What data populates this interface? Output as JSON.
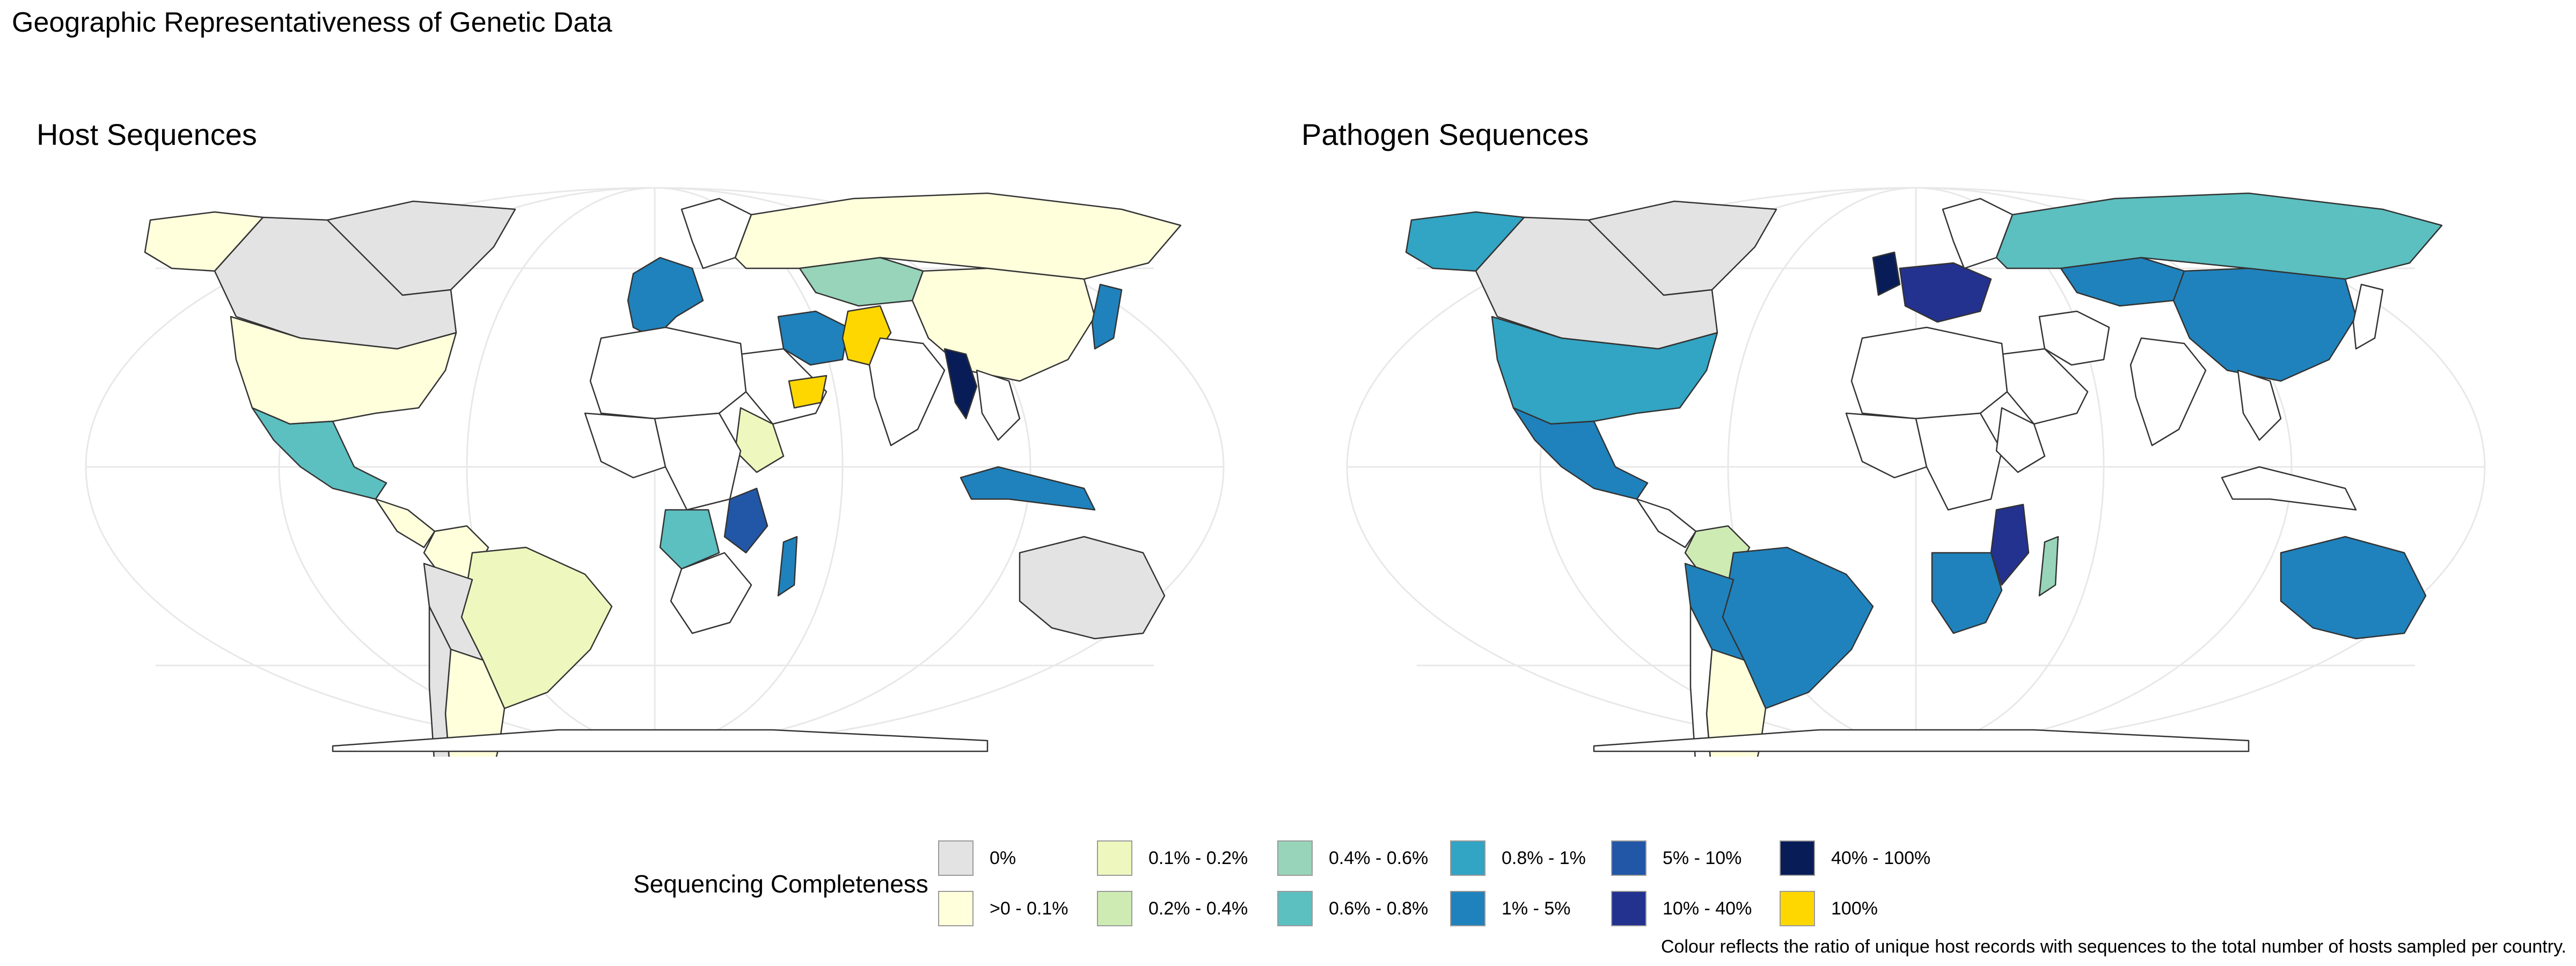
{
  "title": "Geographic Representativeness of Genetic Data",
  "panels": {
    "host": {
      "title": "Host Sequences"
    },
    "pathogen": {
      "title": "Pathogen Sequences"
    }
  },
  "legend": {
    "title": "Sequencing Completeness",
    "items": [
      {
        "label": "0%",
        "color": "#e3e3e3"
      },
      {
        "label": ">0 - 0.1%",
        "color": "#ffffdc"
      },
      {
        "label": "0.1% - 0.2%",
        "color": "#eef7bd"
      },
      {
        "label": "0.2% - 0.4%",
        "color": "#cfebb4"
      },
      {
        "label": "0.4% - 0.6%",
        "color": "#97d4b9"
      },
      {
        "label": "0.6% - 0.8%",
        "color": "#5cbfc0"
      },
      {
        "label": "0.8% - 1%",
        "color": "#32a4c4"
      },
      {
        "label": "1% - 5%",
        "color": "#1f82bc"
      },
      {
        "label": "5% - 10%",
        "color": "#2256a6"
      },
      {
        "label": "10% - 40%",
        "color": "#23318f"
      },
      {
        "label": "40% - 100%",
        "color": "#081d58"
      },
      {
        "label": "100%",
        "color": "#ffd700"
      }
    ]
  },
  "caption": "Colour reflects the ratio of unique host records with sequences to the total number of hosts sampled per country.",
  "map_data": {
    "host": {
      "USA": ">0 - 0.1%",
      "Canada": "0%",
      "Alaska": ">0 - 0.1%",
      "Greenland": "0%",
      "Mexico": "0.6% - 0.8%",
      "Central America": ">0 - 0.1%",
      "Brazil": "0.1% - 0.2%",
      "Colombia": ">0 - 0.1%",
      "Peru": "0%",
      "Argentina": ">0 - 0.1%",
      "Chile": "0%",
      "Russia": ">0 - 0.1%",
      "Kazakhstan": "0.4% - 0.6%",
      "China": ">0 - 0.1%",
      "Iran": "1% - 5%",
      "Pakistan": "100%",
      "Myanmar": "40% - 100%",
      "Oman": "100%",
      "Japan": "1% - 5%",
      "Ethiopia": "0.1% - 0.2%",
      "Tanzania": "5% - 10%",
      "Angola": "0.6% - 0.8%",
      "Madagascar": "1% - 5%",
      "Indonesia": "1% - 5%",
      "Australia": "0%",
      "Western Europe": "1% - 5%"
    },
    "pathogen": {
      "USA": "0.8% - 1%",
      "Canada": "0%",
      "Alaska": "0.8% - 1%",
      "Greenland": "0%",
      "Mexico": "1% - 5%",
      "Brazil": "1% - 5%",
      "Colombia": "0.2% - 0.4%",
      "Peru": "1% - 5%",
      "Argentina": ">0 - 0.1%",
      "Russia": "0.6% - 0.8%",
      "China": "1% - 5%",
      "Kazakhstan": "1% - 5%",
      "Mozambique": "10% - 40%",
      "South Africa": "1% - 5%",
      "Madagascar": "0.4% - 0.6%",
      "Australia": "1% - 5%",
      "United Kingdom": "40% - 100%",
      "Central Europe": "10% - 40%"
    }
  }
}
